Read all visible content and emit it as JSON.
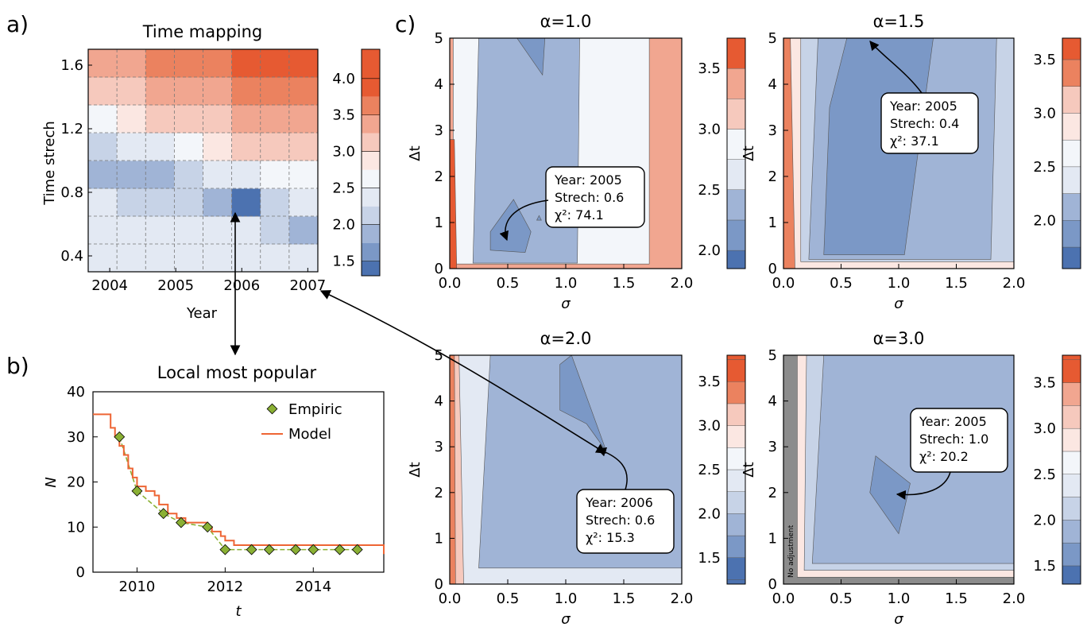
{
  "colors": {
    "c1": "#4c72b0",
    "c2": "#7b98c6",
    "c3": "#a0b4d6",
    "c4": "#c7d3e7",
    "c5": "#e3e9f3",
    "c6": "#f3f6fa",
    "c7": "#fbe7e2",
    "c8": "#f6c9bd",
    "c9": "#f1a690",
    "c10": "#eb825f",
    "c11": "#e65a32",
    "gray": "#8c8c8c",
    "line": "#ee6534",
    "marker": "#8ab034"
  },
  "panels": {
    "a": "a)",
    "b": "b)",
    "c": "c)"
  },
  "chart_data": [
    {
      "id": "time-mapping",
      "type": "heatmap",
      "title": "Time mapping",
      "xlabel": "Year",
      "ylabel": "Time strech",
      "xticks": [
        "2004",
        "2005",
        "2006",
        "2007"
      ],
      "yticks": [
        "0.4",
        "0.8",
        "1.2",
        "1.6"
      ],
      "x_cells": [
        "2003.8",
        "2004.2",
        "2004.6",
        "2005.0",
        "2005.4",
        "2005.8",
        "2006.2",
        "2006.6"
      ],
      "y_cells": [
        0.2,
        0.4,
        0.6,
        0.8,
        1.0,
        1.2,
        1.4,
        1.6
      ],
      "values": [
        [
          2.7,
          2.7,
          2.7,
          2.7,
          2.7,
          2.7,
          2.7,
          2.7
        ],
        [
          2.6,
          2.5,
          2.5,
          2.5,
          2.5,
          2.5,
          2.3,
          2.0
        ],
        [
          2.5,
          2.4,
          2.3,
          2.2,
          2.0,
          1.5,
          2.2,
          2.5
        ],
        [
          2.1,
          2.0,
          2.0,
          2.2,
          2.5,
          2.7,
          2.8,
          2.9
        ],
        [
          2.3,
          2.5,
          2.7,
          2.9,
          3.1,
          3.3,
          3.4,
          3.5
        ],
        [
          2.9,
          3.1,
          3.3,
          3.4,
          3.5,
          3.6,
          3.7,
          3.8
        ],
        [
          3.4,
          3.5,
          3.6,
          3.7,
          3.8,
          3.9,
          4.0,
          4.0
        ],
        [
          3.7,
          3.8,
          3.9,
          4.0,
          4.1,
          4.2,
          4.2,
          4.3
        ]
      ],
      "colorbar": {
        "ticks": [
          "1.5",
          "2.0",
          "2.5",
          "3.0",
          "3.5",
          "4.0"
        ],
        "range": [
          1.3,
          4.4
        ]
      }
    },
    {
      "id": "local-most-popular",
      "type": "line",
      "title": "Local most popular",
      "xlabel": "t",
      "ylabel": "N",
      "xlim": [
        2009,
        2015.6
      ],
      "ylim": [
        0,
        40
      ],
      "xticks": [
        "2010",
        "2012",
        "2014"
      ],
      "yticks": [
        "0",
        "10",
        "20",
        "30",
        "40"
      ],
      "series": [
        {
          "name": "Empiric",
          "x": [
            2009.6,
            2010.0,
            2010.6,
            2011.0,
            2011.6,
            2012.0,
            2012.6,
            2013.0,
            2013.6,
            2014.0,
            2014.6,
            2015.0
          ],
          "y": [
            30,
            18,
            13,
            11,
            10,
            5,
            5,
            5,
            5,
            5,
            5,
            5
          ]
        },
        {
          "name": "Model",
          "x": [
            2009.0,
            2009.4,
            2009.5,
            2009.6,
            2009.7,
            2009.8,
            2009.9,
            2010.0,
            2010.2,
            2010.4,
            2010.5,
            2010.7,
            2010.9,
            2011.1,
            2011.5,
            2011.6,
            2011.7,
            2011.9,
            2012.0,
            2012.2,
            2015.6
          ],
          "y": [
            35,
            32,
            30,
            28,
            26,
            23,
            21,
            19,
            18,
            17,
            15,
            13,
            12,
            11,
            11,
            10,
            9,
            8,
            7,
            6,
            4
          ]
        }
      ]
    },
    {
      "id": "alpha-1.0",
      "type": "contour",
      "title": "α=1.0",
      "xlabel": "σ",
      "ylabel": "Δt",
      "xticks": [
        "0.0",
        "0.5",
        "1.0",
        "1.5",
        "2.0"
      ],
      "yticks": [
        "0",
        "1",
        "2",
        "3",
        "4",
        "5"
      ],
      "xlim": [
        0,
        2
      ],
      "ylim": [
        0,
        5
      ],
      "colorbar": {
        "ticks": [
          "2.0",
          "2.5",
          "3.0",
          "3.5"
        ],
        "range": [
          1.85,
          3.75
        ]
      },
      "annotation": {
        "lines": [
          "Year: 2005",
          "Strech: 0.6",
          "χ²: 74.1"
        ],
        "target": [
          0.5,
          0.45
        ]
      }
    },
    {
      "id": "alpha-1.5",
      "type": "contour",
      "title": "α=1.5",
      "xlabel": "σ",
      "ylabel": "Δt",
      "xticks": [
        "0.0",
        "0.5",
        "1.0",
        "1.5",
        "2.0"
      ],
      "yticks": [
        "0",
        "1",
        "2",
        "3",
        "4",
        "5"
      ],
      "xlim": [
        0,
        2
      ],
      "ylim": [
        0,
        5
      ],
      "colorbar": {
        "ticks": [
          "2.0",
          "2.5",
          "3.0",
          "3.5"
        ],
        "range": [
          1.55,
          3.7
        ]
      },
      "annotation": {
        "lines": [
          "Year: 2005",
          "Strech: 0.4",
          "χ²: 37.1"
        ],
        "target": [
          0.7,
          4.95
        ]
      }
    },
    {
      "id": "alpha-2.0",
      "type": "contour",
      "title": "α=2.0",
      "xlabel": "σ",
      "ylabel": "Δt",
      "xticks": [
        "0.0",
        "0.5",
        "1.0",
        "1.5",
        "2.0"
      ],
      "yticks": [
        "0",
        "1",
        "2",
        "3",
        "4",
        "5"
      ],
      "xlim": [
        0,
        2
      ],
      "ylim": [
        0,
        5
      ],
      "colorbar": {
        "ticks": [
          "1.5",
          "2.0",
          "2.5",
          "3.0",
          "3.5"
        ],
        "range": [
          1.2,
          3.8
        ]
      },
      "annotation": {
        "lines": [
          "Year: 2006",
          "Strech: 0.6",
          "χ²: 15.3"
        ],
        "target": [
          1.2,
          3.0
        ]
      }
    },
    {
      "id": "alpha-3.0",
      "type": "contour",
      "title": "α=3.0",
      "xlabel": "σ",
      "ylabel": "Δt",
      "xticks": [
        "0.0",
        "0.5",
        "1.0",
        "1.5",
        "2.0"
      ],
      "yticks": [
        "0",
        "1",
        "2",
        "3",
        "4",
        "5"
      ],
      "xlim": [
        0,
        2
      ],
      "ylim": [
        0,
        5
      ],
      "colorbar": {
        "ticks": [
          "1.5",
          "2.0",
          "2.5",
          "3.0",
          "3.5"
        ],
        "range": [
          1.3,
          3.8
        ]
      },
      "annotation": {
        "lines": [
          "Year: 2005",
          "Strech: 1.0",
          "χ²: 20.2"
        ],
        "target": [
          1.0,
          2.0
        ]
      },
      "note": "No adjustment"
    }
  ]
}
